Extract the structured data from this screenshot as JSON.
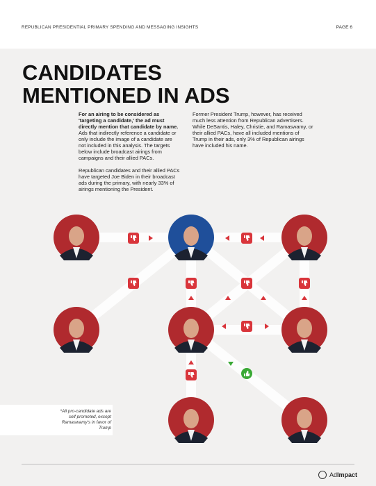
{
  "header": {
    "title": "REPUBLICAN PRESIDENTIAL PRIMARY SPENDING AND MESSAGING INSIGHTS",
    "page": "PAGE 6"
  },
  "section": {
    "title_line1": "CANDIDATES",
    "title_line2": "MENTIONED IN ADS"
  },
  "left_column": {
    "lead": "For an airing to be considered as 'targeting a candidate,' the ad must directly mention that candidate by name.",
    "body": " Ads that indirectly reference a candidate or only include the image of a candidate are not included in this analysis. The targets below include broadcast airings from campaigns and their allied PACs.",
    "paragraph2": "Republican candidates and their allied PACs have targeted Joe Biden in their broadcast ads during the primary, with nearly 33% of airings mentioning the President."
  },
  "right_column": {
    "paragraph1": "Former President Trump, however, has received much less attention from Republican advertisers. While DeSantis, Haley, Christie, and Ramaswamy, or their allied PACs, have all included mentions of Trump in their ads, only 3% of Republican airings have included his name."
  },
  "footnote": "*All pro-candidate ads are self promoted, except Ramaswamy's in favor of Trump",
  "logo": {
    "prefix": "Ad",
    "name": "Impact"
  }
}
